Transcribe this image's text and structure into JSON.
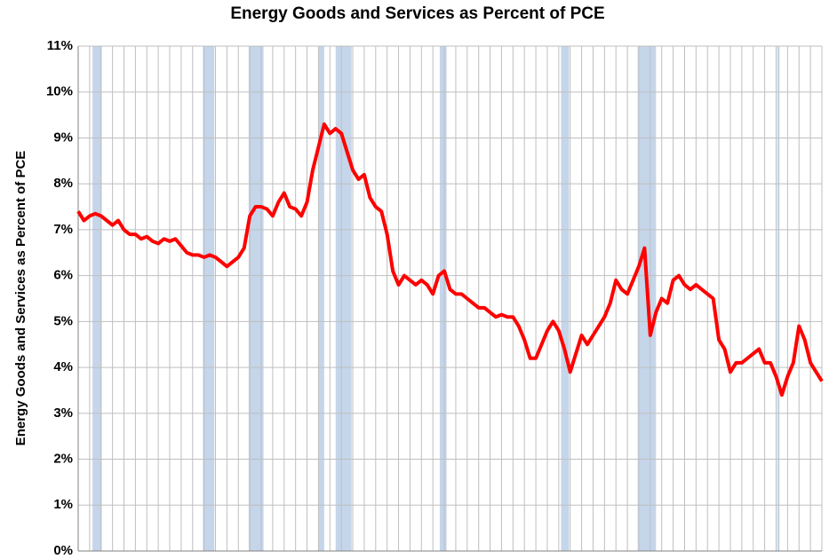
{
  "chart_data": {
    "type": "line",
    "title": "Energy Goods and Services as Percent of PCE",
    "y_label": "Energy Goods and Services as Percent of PCE",
    "series": [
      {
        "name": "Energy Goods and Services as Percent of PCE",
        "color": "#ff0000",
        "values": [
          7.4,
          7.2,
          7.3,
          7.35,
          7.3,
          7.2,
          7.1,
          7.2,
          7.0,
          6.9,
          6.9,
          6.8,
          6.85,
          6.75,
          6.7,
          6.8,
          6.75,
          6.8,
          6.65,
          6.5,
          6.45,
          6.45,
          6.4,
          6.45,
          6.4,
          6.3,
          6.2,
          6.3,
          6.4,
          6.6,
          7.3,
          7.5,
          7.5,
          7.45,
          7.3,
          7.6,
          7.8,
          7.5,
          7.45,
          7.3,
          7.6,
          8.3,
          8.8,
          9.3,
          9.1,
          9.2,
          9.1,
          8.7,
          8.3,
          8.1,
          8.2,
          7.7,
          7.5,
          7.4,
          6.9,
          6.1,
          5.8,
          6.0,
          5.9,
          5.8,
          5.9,
          5.8,
          5.6,
          6.0,
          6.1,
          5.7,
          5.6,
          5.6,
          5.5,
          5.4,
          5.3,
          5.3,
          5.2,
          5.1,
          5.15,
          5.1,
          5.1,
          4.9,
          4.6,
          4.2,
          4.2,
          4.5,
          4.8,
          5.0,
          4.8,
          4.4,
          3.9,
          4.3,
          4.7,
          4.5,
          4.7,
          4.9,
          5.1,
          5.4,
          5.9,
          5.7,
          5.6,
          5.9,
          6.2,
          6.6,
          4.7,
          5.2,
          5.5,
          5.4,
          5.9,
          6.0,
          5.8,
          5.7,
          5.8,
          5.7,
          5.6,
          5.5,
          4.6,
          4.4,
          3.9,
          4.1,
          4.1,
          4.2,
          4.3,
          4.4,
          4.1,
          4.1,
          3.8,
          3.4,
          3.8,
          4.1,
          4.9,
          4.6,
          4.1,
          3.9,
          3.7
        ]
      }
    ],
    "recessions": [
      [
        2.5,
        4.1
      ],
      [
        21.8,
        23.8
      ],
      [
        29.8,
        32.4
      ],
      [
        42,
        43
      ],
      [
        45,
        47.8
      ],
      [
        63.2,
        64.4
      ],
      [
        84.4,
        85.8
      ],
      [
        97.8,
        101
      ],
      [
        122.2,
        122.6
      ]
    ],
    "recession_color": "#c5d5ea",
    "ylim": [
      0,
      11
    ],
    "yticks": [
      {
        "value": 0,
        "label": "0%"
      },
      {
        "value": 1,
        "label": "1%"
      },
      {
        "value": 2,
        "label": "2%"
      },
      {
        "value": 3,
        "label": "3%"
      },
      {
        "value": 4,
        "label": "4%"
      },
      {
        "value": 5,
        "label": "5%"
      },
      {
        "value": 6,
        "label": "6%"
      },
      {
        "value": 7,
        "label": "7%"
      },
      {
        "value": 8,
        "label": "8%"
      },
      {
        "value": 9,
        "label": "9%"
      },
      {
        "value": 10,
        "label": "10%"
      },
      {
        "value": 11,
        "label": "11%"
      }
    ],
    "grid": true
  }
}
